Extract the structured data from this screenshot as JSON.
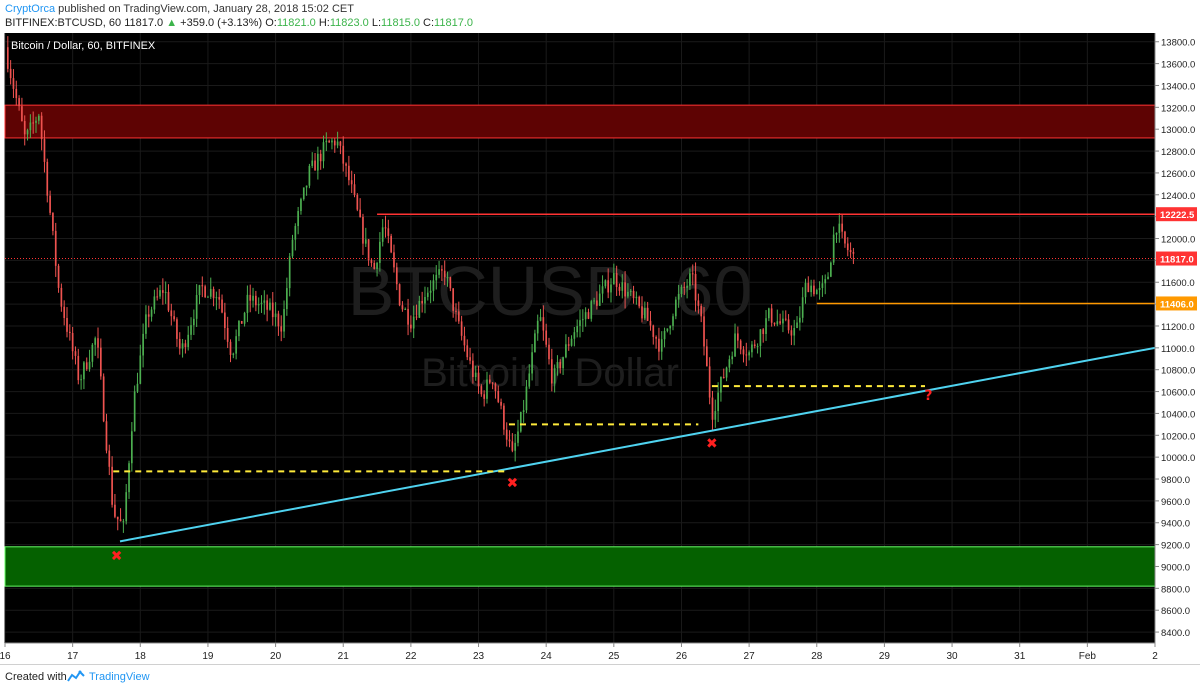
{
  "header": {
    "author": "CryptOrca",
    "published_text": " published on TradingView.com, January 28, 2018 15:02 CET",
    "symbol": "BITFINEX:BTCUSD, 60",
    "last": "11817.0",
    "change": "+359.0 (+3.13%)",
    "o_label": "O:",
    "o_value": "11821.0",
    "h_label": "H:",
    "h_value": "11823.0",
    "l_label": "L:",
    "l_value": "11815.0",
    "c_label": "C:",
    "c_value": "11817.0"
  },
  "footer": {
    "created_with": "Created with",
    "brand": "TradingView"
  },
  "chart_data": {
    "type": "candlestick",
    "title": "Bitcoin / Dollar, 60, BITFINEX",
    "watermark_symbol": "BTCUSD, 60",
    "watermark_name": "Bitcoin / Dollar",
    "ylim": [
      8300,
      13880
    ],
    "y_ticks": [
      8400,
      8600,
      8800,
      9000,
      9200,
      9400,
      9600,
      9800,
      10000,
      10200,
      10400,
      10600,
      10800,
      11000,
      11200,
      11400,
      11600,
      11800,
      12000,
      12200,
      12400,
      12600,
      12800,
      13000,
      13200,
      13400,
      13600,
      13800
    ],
    "x_day_range": [
      16,
      33
    ],
    "x_ticks": [
      {
        "day": 16,
        "label": "16"
      },
      {
        "day": 17,
        "label": "17"
      },
      {
        "day": 18,
        "label": "18"
      },
      {
        "day": 19,
        "label": "19"
      },
      {
        "day": 20,
        "label": "20"
      },
      {
        "day": 21,
        "label": "21"
      },
      {
        "day": 22,
        "label": "22"
      },
      {
        "day": 23,
        "label": "23"
      },
      {
        "day": 24,
        "label": "24"
      },
      {
        "day": 25,
        "label": "25"
      },
      {
        "day": 26,
        "label": "26"
      },
      {
        "day": 27,
        "label": "27"
      },
      {
        "day": 28,
        "label": "28"
      },
      {
        "day": 29,
        "label": "29"
      },
      {
        "day": 30,
        "label": "30"
      },
      {
        "day": 31,
        "label": "31"
      },
      {
        "day": 32,
        "label": "Feb"
      },
      {
        "day": 33,
        "label": "2"
      }
    ],
    "price_path": [
      [
        16.0,
        13750
      ],
      [
        16.3,
        12900
      ],
      [
        16.5,
        13150
      ],
      [
        16.8,
        11500
      ],
      [
        17.1,
        10700
      ],
      [
        17.35,
        11100
      ],
      [
        17.6,
        9500
      ],
      [
        17.75,
        9350
      ],
      [
        17.9,
        10500
      ],
      [
        18.1,
        11300
      ],
      [
        18.35,
        11550
      ],
      [
        18.6,
        10950
      ],
      [
        18.9,
        11550
      ],
      [
        19.15,
        11500
      ],
      [
        19.35,
        10950
      ],
      [
        19.6,
        11450
      ],
      [
        19.9,
        11350
      ],
      [
        20.1,
        11200
      ],
      [
        20.25,
        12000
      ],
      [
        20.5,
        12600
      ],
      [
        20.75,
        12850
      ],
      [
        20.9,
        12900
      ],
      [
        21.1,
        12500
      ],
      [
        21.3,
        12000
      ],
      [
        21.45,
        11700
      ],
      [
        21.6,
        12150
      ],
      [
        21.85,
        11400
      ],
      [
        22.0,
        11250
      ],
      [
        22.2,
        11500
      ],
      [
        22.5,
        11700
      ],
      [
        22.7,
        11200
      ],
      [
        22.9,
        10800
      ],
      [
        23.05,
        10550
      ],
      [
        23.2,
        10750
      ],
      [
        23.4,
        10250
      ],
      [
        23.5,
        10000
      ],
      [
        23.65,
        10400
      ],
      [
        23.9,
        11300
      ],
      [
        24.1,
        10700
      ],
      [
        24.4,
        11150
      ],
      [
        24.7,
        11400
      ],
      [
        25.0,
        11650
      ],
      [
        25.2,
        11500
      ],
      [
        25.5,
        11250
      ],
      [
        25.7,
        11000
      ],
      [
        25.9,
        11400
      ],
      [
        26.15,
        11650
      ],
      [
        26.3,
        11200
      ],
      [
        26.45,
        10400
      ],
      [
        26.6,
        10700
      ],
      [
        26.8,
        11100
      ],
      [
        27.0,
        10950
      ],
      [
        27.3,
        11300
      ],
      [
        27.5,
        11200
      ],
      [
        27.7,
        11150
      ],
      [
        27.85,
        11600
      ],
      [
        28.05,
        11500
      ],
      [
        28.15,
        11600
      ],
      [
        28.28,
        12150
      ],
      [
        28.4,
        11950
      ],
      [
        28.55,
        11817
      ]
    ],
    "zones": [
      {
        "name": "resistance-zone",
        "y_top": 13220,
        "y_bottom": 12920,
        "fill": "#5e0303",
        "stroke": "#ff3333"
      },
      {
        "name": "support-zone",
        "y_top": 9180,
        "y_bottom": 8820,
        "fill": "#056100",
        "stroke": "#66ff66"
      }
    ],
    "horizontal_lines": [
      {
        "name": "resistance-line",
        "y": 12222.5,
        "x_start_day": 21.5,
        "color": "#ff3333",
        "label": "12222.5"
      },
      {
        "name": "support-line",
        "y": 11406.0,
        "x_start_day": 28.0,
        "color": "#ff9900",
        "label": "11406.0"
      },
      {
        "name": "last-price-line",
        "y": 11817.0,
        "x_start_day": 16.0,
        "color": "#ff3333",
        "dotted": true,
        "label": "11817.0"
      }
    ],
    "trendline": {
      "name": "ascending-trendline",
      "x1_day": 17.7,
      "y1": 9230,
      "x2_day": 33.0,
      "y2": 11000,
      "color": "#4fd3f0"
    },
    "dashed_levels": [
      {
        "x1_day": 17.6,
        "x2_day": 23.4,
        "y": 9870
      },
      {
        "x1_day": 23.45,
        "x2_day": 26.25,
        "y": 10300
      },
      {
        "x1_day": 26.45,
        "x2_day": 29.6,
        "y": 10650
      }
    ],
    "markers": [
      {
        "day": 17.65,
        "y": 9100,
        "symbol": "✖"
      },
      {
        "day": 23.5,
        "y": 9770,
        "symbol": "✖"
      },
      {
        "day": 26.45,
        "y": 10130,
        "symbol": "✖"
      },
      {
        "day": 29.65,
        "y": 10570,
        "symbol": "?"
      }
    ],
    "colors": {
      "background": "#000000",
      "up": "#4caf50",
      "down": "#ef5350",
      "grid": "#1a1a1a",
      "axis_text": "#222222",
      "dashed": "#ffeb3b",
      "marker": "#ff2020"
    }
  }
}
